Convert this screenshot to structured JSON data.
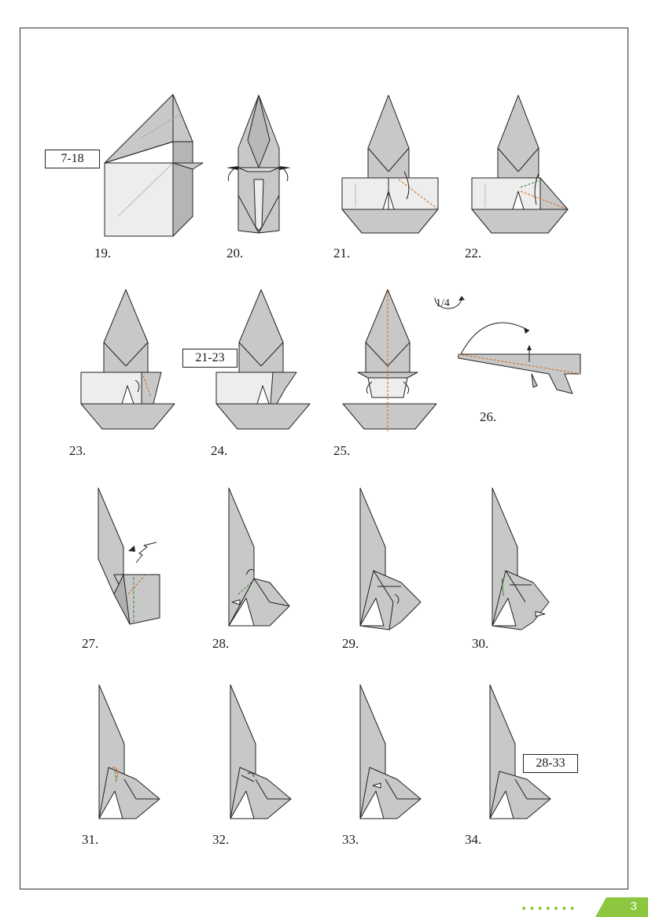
{
  "colors": {
    "paper_gray": "#c8c8c8",
    "paper_light": "#ededed",
    "line": "#222222",
    "valley_fold": "#d2691e",
    "mountain_fold": "#2e8b2e",
    "accent": "#8dc63f"
  },
  "steps": [
    "19.",
    "20.",
    "21.",
    "22.",
    "23.",
    "24.",
    "25.",
    "26.",
    "27.",
    "28.",
    "29.",
    "30.",
    "31.",
    "32.",
    "33.",
    "34."
  ],
  "refs": {
    "r19": "7-18",
    "r24": "21-23",
    "r34": "28-33"
  },
  "rotate_label": "1/4",
  "footer": {
    "dots": "•••••••",
    "page_number": "3"
  }
}
